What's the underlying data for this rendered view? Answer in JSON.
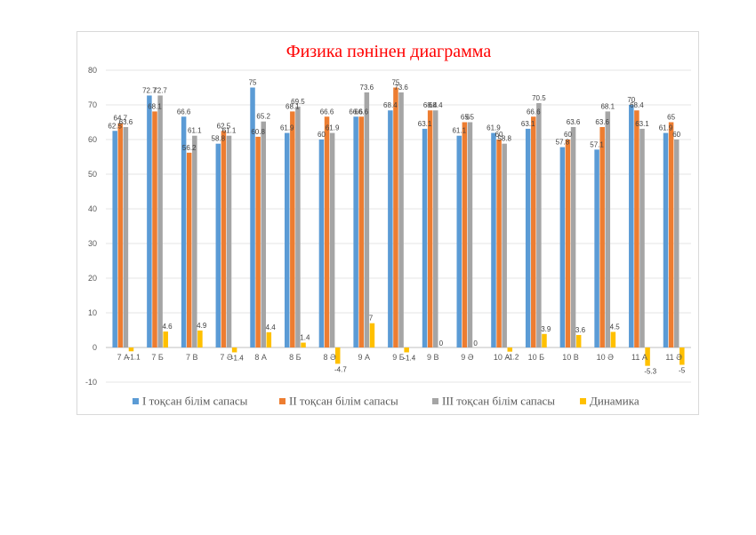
{
  "chart_data": {
    "type": "bar",
    "title": "Физика  пәнінен диаграмма",
    "categories": [
      "7 А",
      "7 Б",
      "7 В",
      "7 Ә",
      "8 А",
      "8 Б",
      "8 Ә",
      "9 А",
      "9 Б",
      "9 В",
      "9 Ә",
      "10 А",
      "10 Б",
      "10 В",
      "10 Ә",
      "11 А",
      "11 Ә"
    ],
    "ylim": [
      -10,
      80
    ],
    "yticks": [
      -10,
      0,
      10,
      20,
      30,
      40,
      50,
      60,
      70,
      80
    ],
    "legend_position": "bottom",
    "gridlines": true,
    "series": [
      {
        "name": "І тоқсан білім сапасы",
        "color": "#5b9bd5",
        "values": [
          62.5,
          72.7,
          66.6,
          58.8,
          75,
          61.9,
          60,
          66.6,
          68.4,
          63.1,
          61.1,
          61.9,
          63.1,
          57.8,
          57.1,
          70,
          61.9
        ]
      },
      {
        "name": "ІІ тоқсан білім сапасы",
        "color": "#ed7d31",
        "values": [
          64.7,
          68.1,
          56.2,
          62.5,
          60.8,
          68.1,
          66.6,
          66.6,
          75,
          68.4,
          65,
          60,
          66.6,
          60,
          63.6,
          68.4,
          65
        ]
      },
      {
        "name": "ІІІ тоқсан білім сапасы",
        "color": "#a5a5a5",
        "values": [
          63.6,
          72.7,
          61.1,
          61.1,
          65.2,
          69.5,
          61.9,
          73.6,
          73.6,
          68.4,
          65,
          58.8,
          70.5,
          63.6,
          68.1,
          63.1,
          60
        ]
      },
      {
        "name": "Динамика",
        "color": "#ffc000",
        "values": [
          -1.1,
          4.6,
          4.9,
          -1.4,
          4.4,
          1.4,
          -4.7,
          7,
          -1.4,
          0,
          0,
          -1.2,
          3.9,
          3.6,
          4.5,
          -5.3,
          -5
        ]
      }
    ]
  }
}
